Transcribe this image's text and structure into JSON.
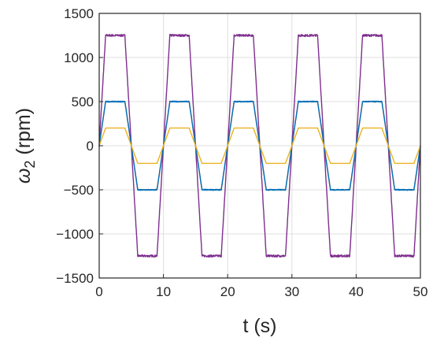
{
  "chart_data": {
    "type": "line",
    "xlabel": "t (s)",
    "ylabel_symbol": "ω",
    "ylabel_subscript": "2",
    "ylabel_unit": " (rpm)",
    "xlim": [
      0,
      50
    ],
    "ylim": [
      -1500,
      1500
    ],
    "xticks": [
      0,
      10,
      20,
      30,
      40,
      50
    ],
    "yticks": [
      -1500,
      -1000,
      -500,
      0,
      500,
      1000,
      1500
    ],
    "grid": true,
    "legend": "none",
    "period": 10,
    "series": [
      {
        "color": "#7e2f8e",
        "noise": 12,
        "points": [
          [
            0,
            0
          ],
          [
            1,
            1250
          ],
          [
            4,
            1250
          ],
          [
            6,
            -1250
          ],
          [
            9,
            -1250
          ],
          [
            10,
            0
          ]
        ]
      },
      {
        "color": "#d95319",
        "noise": 0,
        "points": [
          [
            0,
            0
          ],
          [
            1,
            500
          ],
          [
            4,
            500
          ],
          [
            6,
            -500
          ],
          [
            9,
            -500
          ],
          [
            10,
            0
          ]
        ]
      },
      {
        "color": "#0072bd",
        "noise": 6,
        "points": [
          [
            0,
            0
          ],
          [
            1,
            500
          ],
          [
            4,
            500
          ],
          [
            6,
            -500
          ],
          [
            9,
            -500
          ],
          [
            10,
            0
          ]
        ]
      },
      {
        "color": "#edb120",
        "noise": 0,
        "points": [
          [
            0,
            0
          ],
          [
            1,
            200
          ],
          [
            4,
            200
          ],
          [
            6,
            -200
          ],
          [
            9,
            -200
          ],
          [
            10,
            0
          ]
        ]
      }
    ]
  }
}
